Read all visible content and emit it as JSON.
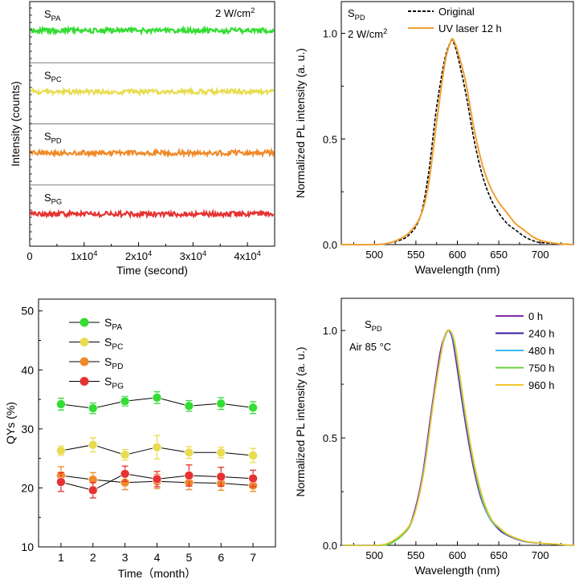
{
  "chart_data": [
    {
      "id": "a",
      "type": "line",
      "xlabel": "Time (second)",
      "ylabel": "Intensity (counts)",
      "xlim": [
        0,
        45000
      ],
      "x_ticks": [
        {
          "v": 0,
          "label": "0"
        },
        {
          "v": 10000,
          "label": "1x10",
          "sup": "4"
        },
        {
          "v": 20000,
          "label": "2x10",
          "sup": "4"
        },
        {
          "v": 30000,
          "label": "3x10",
          "sup": "4"
        },
        {
          "v": 40000,
          "label": "4x10",
          "sup": "4"
        }
      ],
      "annotation": {
        "text": "2 W/cm",
        "sup": "2"
      },
      "panels": [
        {
          "name": "S",
          "sub": "PA",
          "color": "#33dd33",
          "level": 0.5
        },
        {
          "name": "S",
          "sub": "PC",
          "color": "#e8dc50",
          "level": 0.5
        },
        {
          "name": "S",
          "sub": "PD",
          "color": "#f08a28",
          "level": 0.5
        },
        {
          "name": "S",
          "sub": "PG",
          "color": "#e63232",
          "level": 0.5
        }
      ]
    },
    {
      "id": "b",
      "type": "line",
      "xlabel": "Wavelength (nm)",
      "ylabel": "Normalized PL intensity (a. u.)",
      "xlim": [
        460,
        740
      ],
      "ylim": [
        0,
        1.15
      ],
      "x_ticks": [
        500,
        550,
        600,
        650,
        700
      ],
      "y_ticks": [
        {
          "v": 0,
          "label": "0.0"
        },
        {
          "v": 0.5,
          "label": "0.5"
        },
        {
          "v": 1.0,
          "label": "1.0"
        }
      ],
      "labels": [
        {
          "name": "S",
          "sub": "PD"
        },
        {
          "text": "2 W/cm",
          "sup": "2"
        }
      ],
      "series": [
        {
          "name": "Original",
          "color": "#000000",
          "dashed": true,
          "x": [
            460,
            500,
            520,
            540,
            555,
            565,
            575,
            585,
            592,
            595,
            600,
            610,
            620,
            630,
            640,
            650,
            660,
            670,
            680,
            690,
            700,
            720,
            740
          ],
          "y": [
            0,
            0,
            0.01,
            0.04,
            0.13,
            0.33,
            0.65,
            0.88,
            0.96,
            0.96,
            0.9,
            0.72,
            0.5,
            0.33,
            0.22,
            0.15,
            0.1,
            0.07,
            0.04,
            0.02,
            0.01,
            0.005,
            0
          ]
        },
        {
          "name": "UV laser 12 h",
          "color": "#f0a030",
          "dashed": false,
          "x": [
            460,
            500,
            520,
            540,
            555,
            565,
            575,
            585,
            592,
            595,
            600,
            610,
            620,
            630,
            640,
            650,
            660,
            670,
            680,
            690,
            700,
            720,
            740
          ],
          "y": [
            0,
            0,
            0.01,
            0.05,
            0.13,
            0.28,
            0.58,
            0.86,
            0.96,
            0.97,
            0.92,
            0.77,
            0.55,
            0.38,
            0.27,
            0.2,
            0.15,
            0.1,
            0.07,
            0.04,
            0.02,
            0.005,
            0
          ]
        }
      ]
    },
    {
      "id": "c",
      "type": "scatter",
      "xlabel": "Time（month）",
      "ylabel": "QYs (%)",
      "xlim": [
        0.3,
        7.7
      ],
      "ylim": [
        10,
        52
      ],
      "x_ticks": [
        1,
        2,
        3,
        4,
        5,
        6,
        7
      ],
      "y_ticks": [
        10,
        20,
        30,
        40,
        50
      ],
      "series": [
        {
          "name": "S",
          "sub": "PA",
          "color": "#33dd33",
          "x": [
            1,
            2,
            3,
            4,
            5,
            6,
            7
          ],
          "y": [
            34.2,
            33.5,
            34.7,
            35.3,
            33.9,
            34.3,
            33.6
          ],
          "err": [
            1.0,
            0.9,
            0.8,
            1.0,
            0.9,
            1.0,
            1.0
          ]
        },
        {
          "name": "S",
          "sub": "PC",
          "color": "#e8dc50",
          "x": [
            1,
            2,
            3,
            4,
            5,
            6,
            7
          ],
          "y": [
            26.3,
            27.3,
            25.6,
            26.9,
            26.0,
            26.0,
            25.5
          ],
          "err": [
            0.8,
            1.2,
            0.9,
            2.0,
            1.0,
            0.9,
            1.2
          ]
        },
        {
          "name": "S",
          "sub": "PD",
          "color": "#f08a28",
          "x": [
            1,
            2,
            3,
            4,
            5,
            6,
            7
          ],
          "y": [
            22.1,
            21.4,
            20.9,
            21.1,
            20.9,
            20.8,
            20.4
          ],
          "err": [
            1.5,
            1.2,
            1.2,
            1.2,
            1.2,
            1.2,
            1.0
          ]
        },
        {
          "name": "S",
          "sub": "PG",
          "color": "#e63232",
          "x": [
            1,
            2,
            3,
            4,
            5,
            6,
            7
          ],
          "y": [
            21.0,
            19.6,
            22.4,
            21.5,
            22.1,
            21.9,
            21.6
          ],
          "err": [
            1.6,
            1.3,
            1.3,
            1.3,
            1.8,
            1.6,
            1.4
          ]
        }
      ]
    },
    {
      "id": "d",
      "type": "line",
      "xlabel": "Wavelength (nm)",
      "ylabel": "Normalized PL intensity (a. u.)",
      "xlim": [
        460,
        740
      ],
      "ylim": [
        0,
        1.15
      ],
      "x_ticks": [
        500,
        550,
        600,
        650,
        700
      ],
      "y_ticks": [
        {
          "v": 0,
          "label": "0.0"
        },
        {
          "v": 0.5,
          "label": "0.5"
        },
        {
          "v": 1.0,
          "label": "1.0"
        }
      ],
      "labels": [
        {
          "name": "S",
          "sub": "PD"
        },
        {
          "text": "Air 85 °C"
        }
      ],
      "x": [
        460,
        500,
        520,
        540,
        550,
        560,
        570,
        580,
        585,
        590,
        595,
        600,
        610,
        620,
        630,
        640,
        650,
        660,
        680,
        700,
        720,
        740
      ],
      "series": [
        {
          "name": "0 h",
          "color": "#7f2aa8",
          "y": [
            0,
            0,
            0.01,
            0.07,
            0.16,
            0.34,
            0.62,
            0.88,
            0.96,
            1.0,
            0.97,
            0.86,
            0.6,
            0.38,
            0.22,
            0.13,
            0.08,
            0.05,
            0.02,
            0.01,
            0.005,
            0
          ]
        },
        {
          "name": "240 h",
          "color": "#3a1aa0",
          "y": [
            0,
            0,
            0.01,
            0.07,
            0.16,
            0.34,
            0.62,
            0.88,
            0.96,
            1.0,
            0.97,
            0.86,
            0.6,
            0.38,
            0.22,
            0.13,
            0.08,
            0.05,
            0.02,
            0.01,
            0.005,
            0
          ]
        },
        {
          "name": "480 h",
          "color": "#38b8f0",
          "y": [
            0,
            0,
            0.01,
            0.08,
            0.17,
            0.36,
            0.64,
            0.89,
            0.97,
            1.0,
            0.96,
            0.85,
            0.59,
            0.37,
            0.21,
            0.12,
            0.08,
            0.05,
            0.02,
            0.01,
            0.005,
            0
          ]
        },
        {
          "name": "750 h",
          "color": "#6ad040",
          "y": [
            0,
            0,
            0.01,
            0.08,
            0.18,
            0.37,
            0.66,
            0.9,
            0.98,
            1.0,
            0.96,
            0.84,
            0.58,
            0.36,
            0.21,
            0.12,
            0.08,
            0.05,
            0.02,
            0.01,
            0.005,
            0
          ]
        },
        {
          "name": "960 h",
          "color": "#f0c830",
          "y": [
            0,
            0,
            0.02,
            0.09,
            0.19,
            0.39,
            0.68,
            0.92,
            0.99,
            1.0,
            0.95,
            0.83,
            0.57,
            0.36,
            0.21,
            0.12,
            0.08,
            0.05,
            0.02,
            0.01,
            0.005,
            0
          ]
        }
      ]
    }
  ]
}
